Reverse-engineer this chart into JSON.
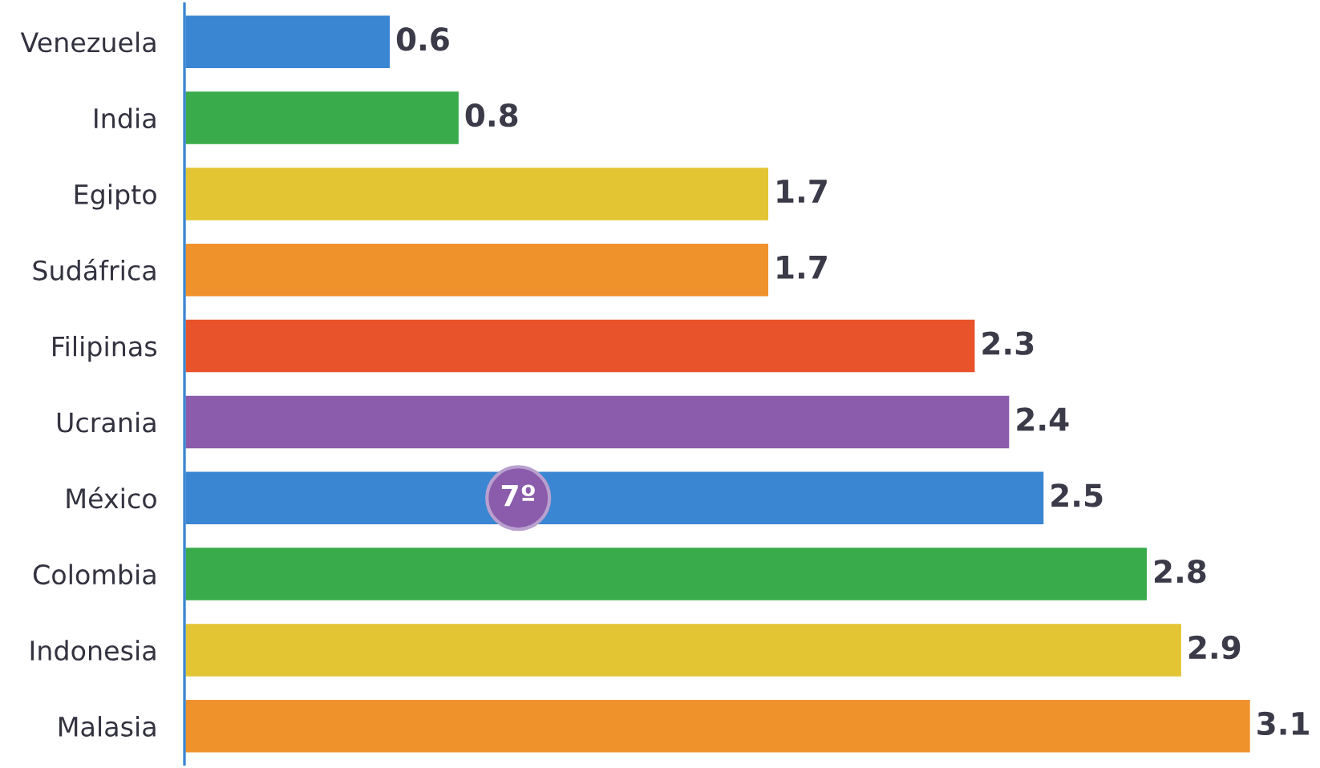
{
  "chart_data": {
    "type": "bar",
    "orientation": "horizontal",
    "categories": [
      "Venezuela",
      "India",
      "Egipto",
      "Sudáfrica",
      "Filipinas",
      "Ucrania",
      "México",
      "Colombia",
      "Indonesia",
      "Malasia"
    ],
    "values": [
      0.6,
      0.8,
      1.7,
      1.7,
      2.3,
      2.4,
      2.5,
      2.8,
      2.9,
      3.1
    ],
    "colors": [
      "#3b86d2",
      "#3aab4b",
      "#e3c433",
      "#f0922c",
      "#e9532b",
      "#8a5cab",
      "#3b86d2",
      "#3aab4b",
      "#e3c433",
      "#f0922c"
    ],
    "data_labels": true,
    "annotations": [
      {
        "text": "7º",
        "x": 0.97,
        "y": "México"
      }
    ]
  }
}
